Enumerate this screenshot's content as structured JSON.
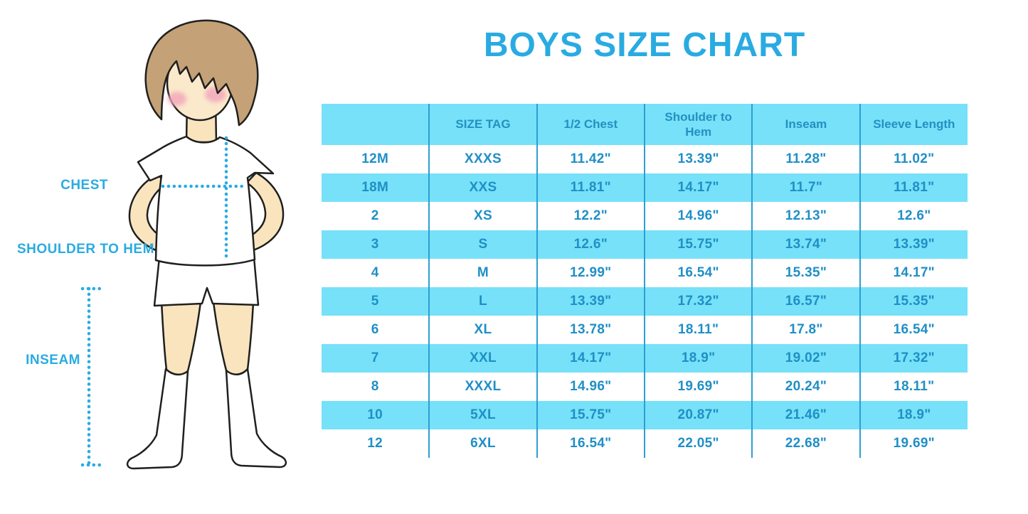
{
  "page": {
    "title": "BOYS SIZE CHART"
  },
  "figure": {
    "labels": {
      "chest": "CHEST",
      "shoulder_to_hem": "SHOULDER TO HEM",
      "inseam": "INSEAM"
    },
    "colors": {
      "label_blue": "#29ABE2",
      "dotted_line": "#29ABE2",
      "skin": "#F9E4BD",
      "hair": "#C4A176",
      "cheek": "#F2A9BC",
      "outline": "#1F1F1F",
      "garment": "#FFFFFF"
    }
  },
  "table_style": {
    "header_bg": "#76E1F8",
    "stripe_bg": "#76E1F8",
    "text_color": "#1F8FC6",
    "grid_line_color": "#2D9ED2"
  },
  "chart_data": {
    "type": "table",
    "title": "BOYS SIZE CHART",
    "columns": [
      "",
      "SIZE TAG",
      "1/2 Chest",
      "Shoulder to Hem",
      "Inseam",
      "Sleeve Length"
    ],
    "rows": [
      [
        "12M",
        "XXXS",
        "11.42\"",
        "13.39\"",
        "11.28\"",
        "11.02\""
      ],
      [
        "18M",
        "XXS",
        "11.81\"",
        "14.17\"",
        "11.7\"",
        "11.81\""
      ],
      [
        "2",
        "XS",
        "12.2\"",
        "14.96\"",
        "12.13\"",
        "12.6\""
      ],
      [
        "3",
        "S",
        "12.6\"",
        "15.75\"",
        "13.74\"",
        "13.39\""
      ],
      [
        "4",
        "M",
        "12.99\"",
        "16.54\"",
        "15.35\"",
        "14.17\""
      ],
      [
        "5",
        "L",
        "13.39\"",
        "17.32\"",
        "16.57\"",
        "15.35\""
      ],
      [
        "6",
        "XL",
        "13.78\"",
        "18.11\"",
        "17.8\"",
        "16.54\""
      ],
      [
        "7",
        "XXL",
        "14.17\"",
        "18.9\"",
        "19.02\"",
        "17.32\""
      ],
      [
        "8",
        "XXXL",
        "14.96\"",
        "19.69\"",
        "20.24\"",
        "18.11\""
      ],
      [
        "10",
        "5XL",
        "15.75\"",
        "20.87\"",
        "21.46\"",
        "18.9\""
      ],
      [
        "12",
        "6XL",
        "16.54\"",
        "22.05\"",
        "22.68\"",
        "19.69\""
      ]
    ],
    "layout": {
      "striped_rows": "alternating white and light-cyan",
      "grid": "vertical column separators only",
      "legend": "none"
    }
  }
}
